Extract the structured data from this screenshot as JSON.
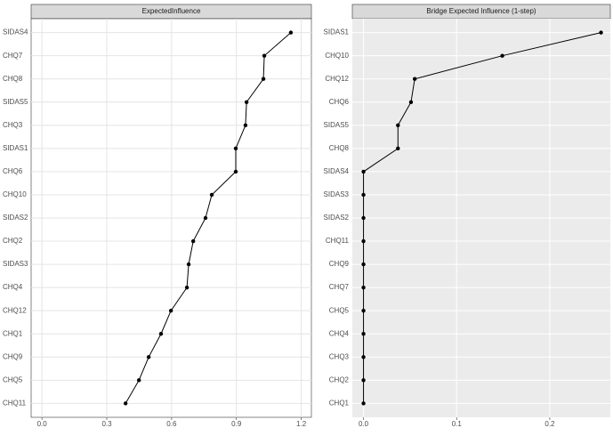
{
  "chart_data": [
    {
      "type": "line",
      "title": "ExpectedInfluence",
      "categories": [
        "SIDAS4",
        "CHQ7",
        "CHQ8",
        "SIDAS5",
        "CHQ3",
        "SIDAS1",
        "CHQ6",
        "CHQ10",
        "SIDAS2",
        "CHQ2",
        "SIDAS3",
        "CHQ4",
        "CHQ12",
        "CHQ1",
        "CHQ9",
        "CHQ5",
        "CHQ11"
      ],
      "values": [
        1.152,
        1.029,
        1.025,
        0.947,
        0.942,
        0.897,
        0.897,
        0.786,
        0.757,
        0.7,
        0.679,
        0.671,
        0.597,
        0.551,
        0.494,
        0.449,
        0.387
      ],
      "xlim": [
        -0.05,
        1.247
      ],
      "xticks": [
        {
          "value": 0,
          "label": "0.0"
        },
        0.3,
        0.6,
        0.9,
        1.2
      ],
      "color": "#000000",
      "background": "#ffffff",
      "grid_color": "#e4e4e4",
      "grid": true
    },
    {
      "type": "line",
      "title": "Bridge Expected Influence (1-step)",
      "categories": [
        "SIDAS1",
        "CHQ10",
        "CHQ12",
        "CHQ6",
        "SIDAS5",
        "CHQ8",
        "SIDAS4",
        "SIDAS3",
        "SIDAS2",
        "CHQ11",
        "CHQ9",
        "CHQ7",
        "CHQ5",
        "CHQ4",
        "CHQ3",
        "CHQ2",
        "CHQ1"
      ],
      "values": [
        0.255,
        0.149,
        0.055,
        0.051,
        0.037,
        0.037,
        0,
        0,
        0,
        0,
        0,
        0,
        0,
        0,
        0,
        0,
        0
      ],
      "xlim": [
        -0.012,
        0.265
      ],
      "xticks": [
        {
          "value": 0,
          "label": "0.0"
        },
        0.1,
        0.2
      ],
      "color": "#000000",
      "background": "#ebebeb",
      "grid_color": "#ffffff",
      "grid": true
    }
  ]
}
